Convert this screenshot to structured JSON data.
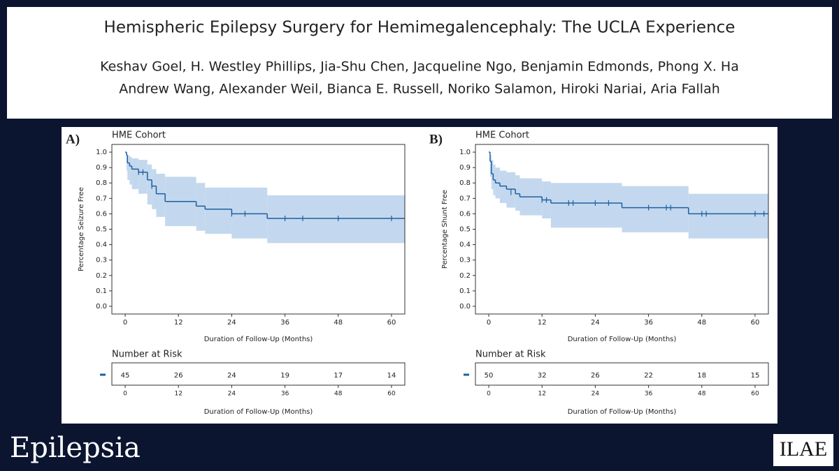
{
  "header": {
    "title": "Hemispheric Epilepsy Surgery for Hemimegalencephaly: The UCLA Experience",
    "authors_line1": "Keshav Goel, H. Westley Phillips, Jia-Shu Chen, Jacqueline Ngo, Benjamin Edmonds, Phong X. Ha",
    "authors_line2": "Andrew Wang, Alexander Weil, Bianca E. Russell, Noriko Salamon, Hiroki Nariai, Aria Fallah"
  },
  "footer": {
    "journal": "Epilepsia",
    "society": "ILAE"
  },
  "chart_data": [
    {
      "type": "step",
      "panel_label": "A)",
      "title": "HME Cohort",
      "ylabel": "Percentage Seizure Free",
      "xlabel": "Duration of Follow-Up (Months)",
      "color": "#1f5f9e",
      "band_color": "#c3d8ee",
      "x": [
        0,
        0.3,
        0.5,
        1,
        1.5,
        3,
        5,
        6,
        7,
        9,
        16,
        18,
        24,
        32,
        63
      ],
      "values": [
        1.0,
        0.98,
        0.93,
        0.91,
        0.89,
        0.87,
        0.82,
        0.78,
        0.73,
        0.68,
        0.65,
        0.63,
        0.6,
        0.57,
        0.57
      ],
      "ci_lower": [
        1.0,
        0.88,
        0.82,
        0.79,
        0.76,
        0.73,
        0.66,
        0.63,
        0.58,
        0.52,
        0.49,
        0.47,
        0.44,
        0.41,
        0.41
      ],
      "ci_upper": [
        1.0,
        0.99,
        0.98,
        0.97,
        0.96,
        0.95,
        0.92,
        0.89,
        0.86,
        0.84,
        0.8,
        0.77,
        0.77,
        0.72,
        0.72
      ],
      "censor_x": [
        3,
        4,
        6,
        24,
        27,
        36,
        40,
        48,
        60
      ],
      "censor_values": [
        0.87,
        0.87,
        0.78,
        0.6,
        0.6,
        0.57,
        0.57,
        0.57,
        0.57
      ],
      "xlim": [
        -3,
        63
      ],
      "xticks": [
        0,
        12,
        24,
        36,
        48,
        60
      ],
      "ylim": [
        -0.05,
        1.05
      ],
      "yticks": [
        {
          "value": 0,
          "label": "0.0"
        },
        0.1,
        0.2,
        0.3,
        0.4,
        0.5,
        0.6,
        0.7,
        0.8,
        0.9,
        {
          "value": 1,
          "label": "1.0"
        }
      ],
      "risk_table": {
        "title": "Number at Risk",
        "x": [
          0,
          12,
          24,
          36,
          48,
          60
        ],
        "values": [
          45,
          26,
          24,
          19,
          17,
          14
        ],
        "xticks": [
          0,
          12,
          24,
          36,
          48,
          60
        ],
        "xlabel": "Duration of Follow-Up (Months)"
      }
    },
    {
      "type": "step",
      "panel_label": "B)",
      "title": "HME Cohort",
      "ylabel": "Percentage Shunt Free",
      "xlabel": "Duration of Follow-Up (Months)",
      "color": "#1f5f9e",
      "band_color": "#c3d8ee",
      "x": [
        0,
        0.3,
        0.6,
        1,
        1.5,
        2.5,
        4,
        6,
        7,
        12,
        14,
        30,
        45,
        63
      ],
      "values": [
        1.0,
        0.94,
        0.86,
        0.82,
        0.8,
        0.78,
        0.76,
        0.73,
        0.71,
        0.69,
        0.67,
        0.64,
        0.6,
        0.6
      ],
      "ci_lower": [
        1.0,
        0.84,
        0.76,
        0.72,
        0.7,
        0.67,
        0.64,
        0.62,
        0.59,
        0.57,
        0.51,
        0.48,
        0.44,
        0.44
      ],
      "ci_upper": [
        1.0,
        0.98,
        0.95,
        0.92,
        0.9,
        0.88,
        0.87,
        0.85,
        0.83,
        0.81,
        0.8,
        0.78,
        0.73,
        0.73
      ],
      "censor_x": [
        5,
        12,
        13,
        18,
        19,
        24,
        27,
        36,
        40,
        41,
        48,
        49,
        60,
        62
      ],
      "censor_values": [
        0.74,
        0.69,
        0.69,
        0.67,
        0.67,
        0.67,
        0.67,
        0.64,
        0.64,
        0.64,
        0.6,
        0.6,
        0.6,
        0.6
      ],
      "xlim": [
        -3,
        63
      ],
      "xticks": [
        0,
        12,
        24,
        36,
        48,
        60
      ],
      "ylim": [
        -0.05,
        1.05
      ],
      "yticks": [
        {
          "value": 0,
          "label": "0.0"
        },
        0.1,
        0.2,
        0.3,
        0.4,
        0.5,
        0.6,
        0.7,
        0.8,
        0.9,
        {
          "value": 1,
          "label": "1.0"
        }
      ],
      "risk_table": {
        "title": "Number at Risk",
        "x": [
          0,
          12,
          24,
          36,
          48,
          60
        ],
        "values": [
          50,
          32,
          26,
          22,
          18,
          15
        ],
        "xticks": [
          0,
          12,
          24,
          36,
          48,
          60
        ],
        "xlabel": "Duration of Follow-Up (Months)"
      }
    }
  ]
}
